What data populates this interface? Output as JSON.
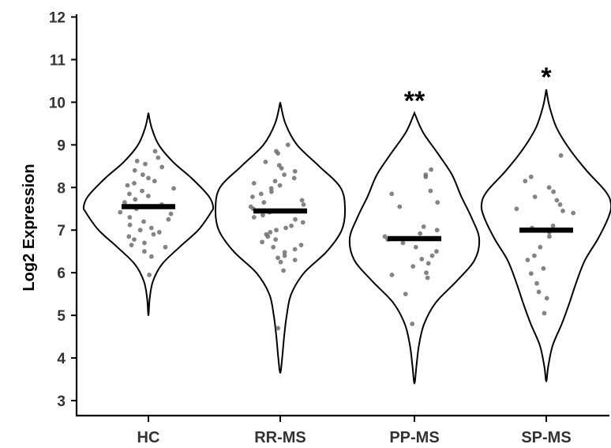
{
  "chart_data": {
    "type": "violin",
    "ylabel": "Log2 Expression",
    "xlabel": "",
    "ylim": [
      2.6,
      12
    ],
    "yticks": [
      3,
      4,
      5,
      6,
      7,
      8,
      9,
      10,
      11,
      12
    ],
    "ytick_labels": [
      "3",
      "4",
      "5",
      "6",
      "7",
      "8",
      "9",
      "10",
      "11",
      "12"
    ],
    "categories": [
      "HC",
      "RR-MS",
      "PP-MS",
      "SP-MS"
    ],
    "grid": false,
    "legend": "none",
    "colors": {
      "violin_outline": "#000000",
      "median": "#000000",
      "points": "#6e6e6e"
    },
    "groups": [
      {
        "name": "HC",
        "median": 7.55,
        "significance": "",
        "violin": {
          "y": [
            5.0,
            5.4,
            5.8,
            6.2,
            6.6,
            7.0,
            7.4,
            7.55,
            7.8,
            8.2,
            8.6,
            9.0,
            9.4,
            9.75
          ],
          "half_width": [
            0,
            0.02,
            0.07,
            0.21,
            0.48,
            0.77,
            0.96,
            1.0,
            0.93,
            0.68,
            0.38,
            0.16,
            0.05,
            0
          ]
        },
        "points": [
          8.85,
          8.7,
          8.62,
          8.55,
          8.48,
          8.4,
          8.3,
          8.22,
          8.15,
          8.1,
          8.05,
          7.98,
          7.92,
          7.85,
          7.8,
          7.72,
          7.65,
          7.6,
          7.55,
          7.5,
          7.42,
          7.38,
          7.3,
          7.25,
          7.2,
          7.12,
          7.05,
          7.0,
          6.95,
          6.9,
          6.85,
          6.78,
          6.7,
          6.65,
          6.6,
          6.5,
          6.38,
          5.95
        ]
      },
      {
        "name": "RR-MS",
        "median": 7.45,
        "significance": "",
        "violin": {
          "y": [
            3.65,
            4.0,
            4.5,
            5.0,
            5.5,
            6.0,
            6.5,
            7.0,
            7.5,
            8.0,
            8.5,
            9.0,
            9.5,
            10.0
          ],
          "half_width": [
            0,
            0.03,
            0.06,
            0.1,
            0.17,
            0.37,
            0.72,
            0.95,
            1.0,
            0.93,
            0.6,
            0.26,
            0.08,
            0
          ]
        },
        "points": [
          9.0,
          8.85,
          8.8,
          8.6,
          8.52,
          8.45,
          8.38,
          8.3,
          8.22,
          8.15,
          8.1,
          8.05,
          7.98,
          7.9,
          7.85,
          7.78,
          7.7,
          7.65,
          7.6,
          7.55,
          7.5,
          7.42,
          7.35,
          7.3,
          7.25,
          7.18,
          7.1,
          7.05,
          7.0,
          6.95,
          6.9,
          6.85,
          6.78,
          6.72,
          6.65,
          6.6,
          6.55,
          6.48,
          6.4,
          6.35,
          6.3,
          6.25,
          6.05,
          4.7
        ]
      },
      {
        "name": "PP-MS",
        "median": 6.8,
        "significance": "**",
        "violin": {
          "y": [
            3.4,
            3.8,
            4.3,
            4.8,
            5.3,
            5.8,
            6.3,
            6.8,
            7.3,
            7.8,
            8.3,
            8.8,
            9.3,
            9.75
          ],
          "half_width": [
            0,
            0.03,
            0.07,
            0.15,
            0.33,
            0.65,
            0.93,
            1.0,
            0.88,
            0.72,
            0.58,
            0.36,
            0.13,
            0
          ]
        },
        "points": [
          8.42,
          8.3,
          8.25,
          7.92,
          7.85,
          7.65,
          7.55,
          7.08,
          7.0,
          6.92,
          6.85,
          6.78,
          6.7,
          6.6,
          6.5,
          6.4,
          6.32,
          6.22,
          6.15,
          6.0,
          5.95,
          5.88,
          5.5,
          4.8
        ]
      },
      {
        "name": "SP-MS",
        "median": 7.0,
        "significance": "*",
        "violin": {
          "y": [
            3.45,
            3.8,
            4.3,
            4.8,
            5.3,
            5.8,
            6.3,
            6.8,
            7.3,
            7.6,
            7.9,
            8.4,
            8.9,
            9.4,
            9.9,
            10.3
          ],
          "half_width": [
            0,
            0.03,
            0.1,
            0.24,
            0.36,
            0.47,
            0.6,
            0.8,
            0.96,
            1.0,
            0.92,
            0.62,
            0.36,
            0.16,
            0.05,
            0
          ]
        },
        "points": [
          8.75,
          8.25,
          8.15,
          8.0,
          7.9,
          7.78,
          7.7,
          7.6,
          7.5,
          7.45,
          7.4,
          7.1,
          7.05,
          7.0,
          6.95,
          6.85,
          6.6,
          6.4,
          6.3,
          6.1,
          5.98,
          5.75,
          5.55,
          5.4,
          5.05
        ]
      }
    ]
  }
}
